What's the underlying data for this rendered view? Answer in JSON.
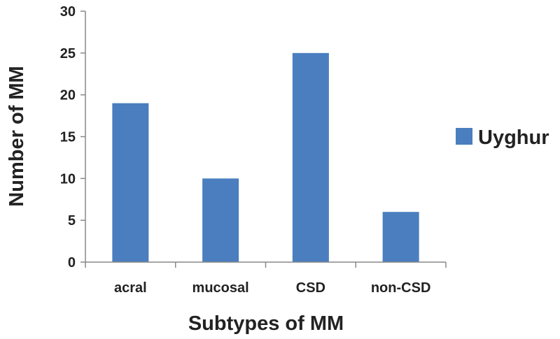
{
  "chart_data": {
    "type": "bar",
    "categories": [
      "acral",
      "mucosal",
      "CSD",
      "non-CSD"
    ],
    "series": [
      {
        "name": "Uyghur",
        "values": [
          19,
          10,
          25,
          6
        ],
        "color": "#4a7ebf"
      }
    ],
    "xlabel": "Subtypes of MM",
    "ylabel": "Number of MM",
    "ylim": [
      0,
      30
    ],
    "yticks": [
      0,
      5,
      10,
      15,
      20,
      25,
      30
    ],
    "grid": false,
    "legend": "right"
  }
}
